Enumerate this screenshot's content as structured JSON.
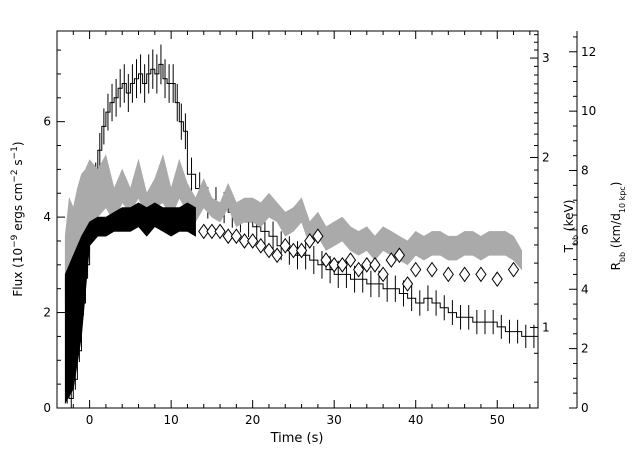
{
  "chart_data": {
    "type": "line",
    "title": "",
    "xlabel": "Time (s)",
    "ylabel_left": "Flux (10^-9 ergs cm^-2 s^-1)",
    "ylabel_mid": "T_bb (keV)",
    "ylabel_right": "R_bb (km/d_10 kpc)",
    "xlim": [
      -4,
      55
    ],
    "ylim": [
      0,
      7.9
    ],
    "x_ticks": [
      0,
      10,
      20,
      30,
      40,
      50
    ],
    "y_ticks": [
      0,
      2,
      4,
      6
    ],
    "mid_axis": {
      "range": [
        0.72,
        3.35
      ],
      "ticks": [
        1,
        2,
        3
      ],
      "scale": "log"
    },
    "right_axis": {
      "range": [
        0,
        12.7
      ],
      "ticks": [
        0,
        2,
        4,
        6,
        8,
        10,
        12
      ]
    },
    "grid": false,
    "legend": "none",
    "series": [
      {
        "style": "histogram",
        "color": "#000000",
        "x": [
          -3.0,
          -2.5,
          -2.0,
          -1.5,
          -1.0,
          -0.5,
          0.0,
          0.5,
          1.0,
          1.5,
          2.0,
          2.5,
          3.0,
          3.5,
          4.0,
          4.5,
          5.0,
          5.5,
          6.0,
          6.5,
          7.0,
          7.5,
          8.0,
          8.5,
          9.0,
          9.5,
          10.0,
          10.5,
          11.0,
          11.5,
          12.0,
          13.0,
          14.0,
          15.0,
          16.0,
          17.0,
          18.0,
          19.0,
          20.0,
          21.0,
          22.0,
          23.0,
          24.0,
          25.0,
          26.0,
          27.0,
          28.0,
          29.0,
          30.0,
          31.0,
          32.0,
          33.0,
          34.0,
          35.0,
          36.0,
          37.0,
          38.0,
          39.0,
          40.0,
          41.0,
          42.0,
          43.0,
          44.0,
          45.0,
          46.0,
          47.0,
          48.0,
          49.0,
          50.0,
          51.0,
          52.0,
          53.0,
          54.0
        ],
        "y": [
          0.3,
          0.2,
          0.6,
          1.2,
          2.2,
          3.0,
          4.0,
          4.8,
          5.4,
          5.9,
          6.2,
          6.4,
          6.5,
          6.7,
          6.8,
          6.6,
          6.8,
          6.9,
          7.0,
          6.8,
          7.0,
          7.1,
          7.0,
          7.2,
          6.9,
          6.8,
          6.8,
          6.4,
          6.0,
          5.8,
          4.9,
          4.6,
          4.3,
          4.3,
          4.2,
          4.1,
          4.0,
          3.9,
          3.8,
          3.7,
          3.6,
          3.4,
          3.3,
          3.2,
          3.2,
          3.1,
          3.0,
          2.9,
          2.8,
          2.8,
          2.7,
          2.7,
          2.6,
          2.6,
          2.5,
          2.5,
          2.4,
          2.3,
          2.2,
          2.3,
          2.2,
          2.1,
          2.0,
          1.9,
          1.9,
          1.8,
          1.8,
          1.8,
          1.7,
          1.6,
          1.6,
          1.5,
          1.5
        ]
      },
      {
        "style": "band",
        "color": "#aaaaaa",
        "x": [
          -3.0,
          -2.5,
          -2.0,
          -1.5,
          -1.0,
          -0.5,
          0.0,
          1.0,
          2.0,
          3.0,
          4.0,
          5.0,
          6.0,
          7.0,
          8.0,
          9.0,
          10.0,
          11.0,
          12.0,
          13.0,
          14.0,
          15.0,
          16.0,
          17.0,
          18.0,
          19.0,
          20.0,
          21.0,
          22.0,
          23.0,
          24.0,
          25.0,
          26.0,
          27.0,
          28.0,
          29.0,
          30.0,
          31.0,
          32.0,
          33.0,
          34.0,
          35.0,
          36.0,
          37.0,
          38.0,
          39.0,
          40.0,
          41.0,
          42.0,
          43.0,
          44.0,
          45.0,
          46.0,
          47.0,
          48.0,
          49.0,
          50.0,
          51.0,
          52.0,
          53.0
        ],
        "y_low": [
          2.2,
          2.8,
          2.6,
          3.0,
          3.4,
          3.6,
          3.8,
          4.0,
          4.2,
          3.9,
          4.3,
          4.1,
          4.4,
          4.0,
          4.2,
          4.3,
          4.0,
          4.4,
          4.1,
          3.9,
          4.2,
          4.0,
          3.9,
          4.2,
          3.8,
          3.9,
          3.9,
          3.8,
          4.0,
          3.9,
          3.6,
          3.7,
          3.9,
          3.4,
          3.6,
          3.3,
          3.4,
          3.5,
          3.3,
          3.2,
          3.3,
          3.1,
          3.3,
          3.2,
          3.1,
          3.0,
          3.2,
          3.1,
          3.2,
          3.2,
          3.1,
          3.1,
          3.2,
          3.2,
          3.1,
          3.2,
          3.2,
          3.2,
          3.1,
          2.9
        ],
        "y_high": [
          3.6,
          4.4,
          4.2,
          4.6,
          4.9,
          5.0,
          5.2,
          5.0,
          5.3,
          4.6,
          5.0,
          4.6,
          5.2,
          4.5,
          4.8,
          5.3,
          4.6,
          5.2,
          4.7,
          4.4,
          4.8,
          4.4,
          4.3,
          4.7,
          4.3,
          4.4,
          4.4,
          4.3,
          4.5,
          4.3,
          4.1,
          4.2,
          4.4,
          3.9,
          4.1,
          3.8,
          3.9,
          4.0,
          3.8,
          3.7,
          3.8,
          3.6,
          3.8,
          3.7,
          3.6,
          3.5,
          3.7,
          3.6,
          3.7,
          3.7,
          3.6,
          3.6,
          3.7,
          3.7,
          3.6,
          3.7,
          3.7,
          3.7,
          3.6,
          3.3
        ]
      },
      {
        "style": "band",
        "color": "#000000",
        "x": [
          -3.0,
          -2.0,
          -1.0,
          0.0,
          1.0,
          2.0,
          3.0,
          4.0,
          5.0,
          6.0,
          7.0,
          8.0,
          9.0,
          10.0,
          11.0,
          12.0,
          13.0
        ],
        "y_low": [
          0.1,
          0.4,
          1.5,
          3.4,
          3.6,
          3.6,
          3.7,
          3.7,
          3.7,
          3.8,
          3.6,
          3.8,
          3.7,
          3.6,
          3.7,
          3.7,
          3.6
        ],
        "y_high": [
          2.8,
          3.2,
          3.6,
          3.9,
          4.0,
          4.0,
          4.1,
          4.2,
          4.2,
          4.3,
          4.2,
          4.3,
          4.2,
          4.2,
          4.2,
          4.3,
          4.2
        ]
      },
      {
        "style": "diamonds",
        "color": "#000000",
        "x": [
          14.0,
          15.0,
          16.0,
          17.0,
          18.0,
          19.0,
          20.0,
          21.0,
          22.0,
          23.0,
          24.0,
          25.0,
          26.0,
          27.0,
          28.0,
          29.0,
          30.0,
          31.0,
          32.0,
          33.0,
          34.0,
          35.0,
          36.0,
          37.0,
          38.0,
          39.0,
          40.0,
          42.0,
          44.0,
          46.0,
          48.0,
          50.0,
          52.0
        ],
        "y": [
          3.7,
          3.7,
          3.7,
          3.6,
          3.6,
          3.5,
          3.5,
          3.4,
          3.3,
          3.2,
          3.4,
          3.3,
          3.3,
          3.5,
          3.6,
          3.1,
          3.0,
          3.0,
          3.1,
          2.9,
          3.0,
          3.0,
          2.8,
          3.1,
          3.2,
          2.6,
          2.9,
          2.9,
          2.8,
          2.8,
          2.8,
          2.7,
          2.9
        ]
      }
    ]
  }
}
